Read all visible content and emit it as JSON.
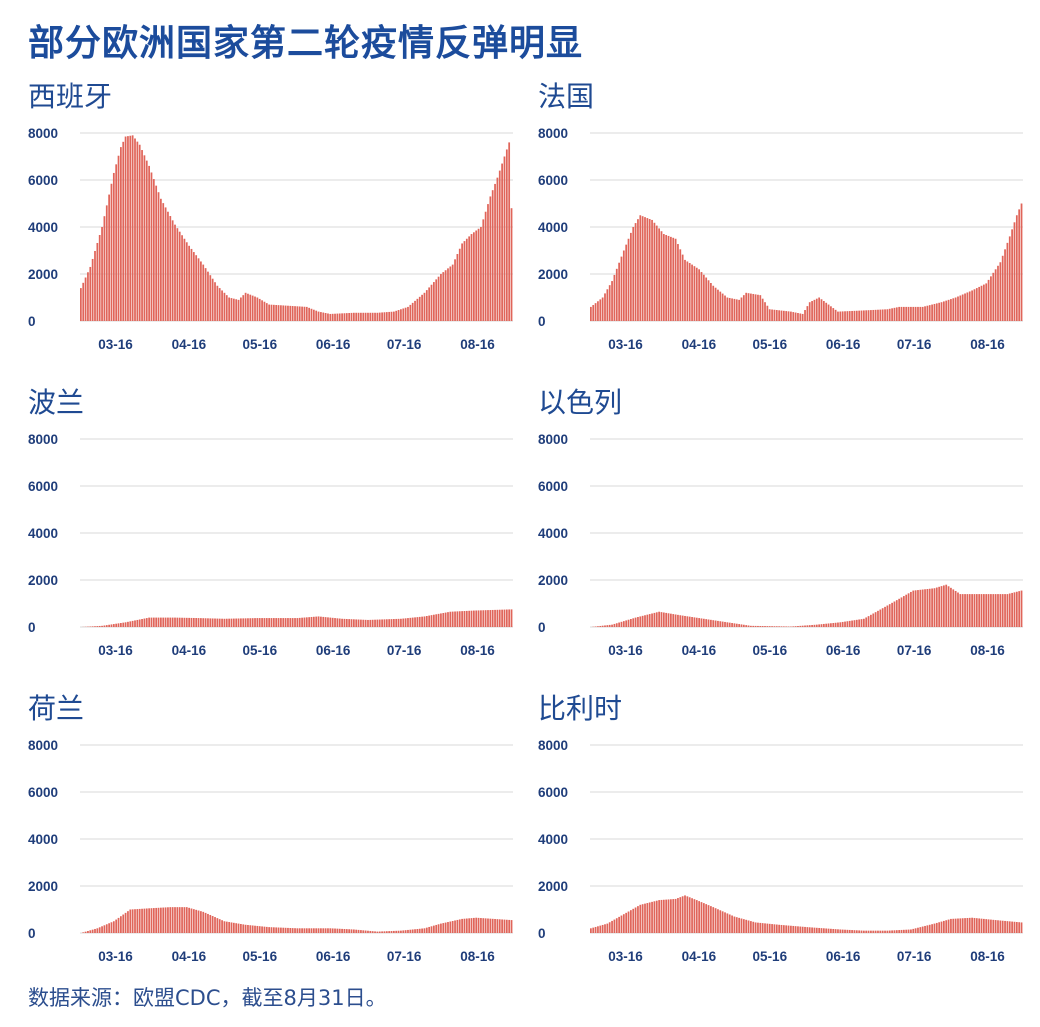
{
  "title": "部分欧洲国家第二轮疫情反弹明显",
  "source": "数据来源：欧盟CDC，截至8月31日。",
  "colors": {
    "bar": "#e0655a",
    "grid": "#d9d9d9",
    "title": "#1c4c9c",
    "tick": "#1f3d7a"
  },
  "chart_data": [
    {
      "type": "bar",
      "title": "西班牙",
      "x_ticks": [
        "03-16",
        "04-16",
        "05-16",
        "06-16",
        "07-16",
        "08-16"
      ],
      "y_ticks": [
        0,
        2000,
        4000,
        6000,
        8000
      ],
      "ylim": [
        0,
        8000
      ],
      "x_range": [
        "03-01",
        "08-31"
      ],
      "series": [
        {
          "points": [
            [
              "03-01",
              1400
            ],
            [
              "03-05",
              2300
            ],
            [
              "03-10",
              4000
            ],
            [
              "03-15",
              6300
            ],
            [
              "03-18",
              7400
            ],
            [
              "03-20",
              7850
            ],
            [
              "03-23",
              7900
            ],
            [
              "03-26",
              7500
            ],
            [
              "03-30",
              6600
            ],
            [
              "04-04",
              5200
            ],
            [
              "04-10",
              4100
            ],
            [
              "04-16",
              3200
            ],
            [
              "04-22",
              2400
            ],
            [
              "04-28",
              1500
            ],
            [
              "05-03",
              1000
            ],
            [
              "05-07",
              900
            ],
            [
              "05-10",
              1200
            ],
            [
              "05-15",
              1000
            ],
            [
              "05-20",
              700
            ],
            [
              "05-28",
              650
            ],
            [
              "06-05",
              600
            ],
            [
              "06-10",
              400
            ],
            [
              "06-15",
              300
            ],
            [
              "06-25",
              350
            ],
            [
              "07-05",
              350
            ],
            [
              "07-12",
              400
            ],
            [
              "07-18",
              600
            ],
            [
              "07-25",
              1200
            ],
            [
              "08-01",
              2000
            ],
            [
              "08-06",
              2400
            ],
            [
              "08-10",
              3300
            ],
            [
              "08-14",
              3700
            ],
            [
              "08-18",
              4000
            ],
            [
              "08-22",
              5300
            ],
            [
              "08-25",
              6100
            ],
            [
              "08-28",
              7000
            ],
            [
              "08-30",
              7600
            ],
            [
              "08-31",
              4800
            ]
          ]
        }
      ]
    },
    {
      "type": "bar",
      "title": "法国",
      "x_ticks": [
        "03-16",
        "04-16",
        "05-16",
        "06-16",
        "07-16",
        "08-16"
      ],
      "y_ticks": [
        0,
        2000,
        4000,
        6000,
        8000
      ],
      "ylim": [
        0,
        8000
      ],
      "x_range": [
        "03-01",
        "08-31"
      ],
      "series": [
        {
          "points": [
            [
              "03-01",
              600
            ],
            [
              "03-06",
              1000
            ],
            [
              "03-10",
              1700
            ],
            [
              "03-15",
              3000
            ],
            [
              "03-19",
              4000
            ],
            [
              "03-22",
              4500
            ],
            [
              "03-27",
              4300
            ],
            [
              "04-01",
              3700
            ],
            [
              "04-06",
              3500
            ],
            [
              "04-10",
              2600
            ],
            [
              "04-16",
              2200
            ],
            [
              "04-22",
              1500
            ],
            [
              "04-28",
              1000
            ],
            [
              "05-03",
              900
            ],
            [
              "05-06",
              1200
            ],
            [
              "05-12",
              1100
            ],
            [
              "05-16",
              500
            ],
            [
              "05-25",
              400
            ],
            [
              "05-30",
              300
            ],
            [
              "06-02",
              800
            ],
            [
              "06-06",
              1000
            ],
            [
              "06-10",
              700
            ],
            [
              "06-14",
              400
            ],
            [
              "06-25",
              450
            ],
            [
              "07-05",
              500
            ],
            [
              "07-10",
              600
            ],
            [
              "07-20",
              600
            ],
            [
              "07-28",
              800
            ],
            [
              "08-03",
              1000
            ],
            [
              "08-10",
              1300
            ],
            [
              "08-16",
              1600
            ],
            [
              "08-22",
              2500
            ],
            [
              "08-26",
              3600
            ],
            [
              "08-29",
              4500
            ],
            [
              "08-31",
              5000
            ]
          ]
        }
      ]
    },
    {
      "type": "bar",
      "title": "波兰",
      "x_ticks": [
        "03-16",
        "04-16",
        "05-16",
        "06-16",
        "07-16",
        "08-16"
      ],
      "y_ticks": [
        0,
        2000,
        4000,
        6000,
        8000
      ],
      "ylim": [
        0,
        8000
      ],
      "x_range": [
        "03-01",
        "08-31"
      ],
      "series": [
        {
          "points": [
            [
              "03-01",
              0
            ],
            [
              "03-10",
              50
            ],
            [
              "03-20",
              200
            ],
            [
              "03-30",
              400
            ],
            [
              "04-10",
              400
            ],
            [
              "04-20",
              380
            ],
            [
              "05-01",
              350
            ],
            [
              "05-15",
              380
            ],
            [
              "06-01",
              380
            ],
            [
              "06-10",
              450
            ],
            [
              "06-20",
              350
            ],
            [
              "07-01",
              300
            ],
            [
              "07-15",
              350
            ],
            [
              "07-25",
              450
            ],
            [
              "08-05",
              650
            ],
            [
              "08-15",
              700
            ],
            [
              "08-31",
              750
            ]
          ]
        }
      ]
    },
    {
      "type": "bar",
      "title": "以色列",
      "x_ticks": [
        "03-16",
        "04-16",
        "05-16",
        "06-16",
        "07-16",
        "08-16"
      ],
      "y_ticks": [
        0,
        2000,
        4000,
        6000,
        8000
      ],
      "ylim": [
        0,
        8000
      ],
      "x_range": [
        "03-01",
        "08-31"
      ],
      "series": [
        {
          "points": [
            [
              "03-01",
              0
            ],
            [
              "03-10",
              100
            ],
            [
              "03-20",
              400
            ],
            [
              "03-30",
              650
            ],
            [
              "04-08",
              500
            ],
            [
              "04-18",
              350
            ],
            [
              "04-28",
              200
            ],
            [
              "05-08",
              50
            ],
            [
              "05-25",
              20
            ],
            [
              "06-05",
              100
            ],
            [
              "06-15",
              200
            ],
            [
              "06-25",
              350
            ],
            [
              "07-03",
              800
            ],
            [
              "07-10",
              1200
            ],
            [
              "07-16",
              1550
            ],
            [
              "07-25",
              1650
            ],
            [
              "07-30",
              1800
            ],
            [
              "08-05",
              1400
            ],
            [
              "08-16",
              1400
            ],
            [
              "08-25",
              1400
            ],
            [
              "08-31",
              1550
            ]
          ]
        }
      ]
    },
    {
      "type": "bar",
      "title": "荷兰",
      "x_ticks": [
        "03-16",
        "04-16",
        "05-16",
        "06-16",
        "07-16",
        "08-16"
      ],
      "y_ticks": [
        0,
        2000,
        4000,
        6000,
        8000
      ],
      "ylim": [
        0,
        8000
      ],
      "x_range": [
        "03-01",
        "08-31"
      ],
      "series": [
        {
          "points": [
            [
              "03-01",
              0
            ],
            [
              "03-08",
              200
            ],
            [
              "03-15",
              500
            ],
            [
              "03-22",
              1000
            ],
            [
              "03-30",
              1050
            ],
            [
              "04-08",
              1100
            ],
            [
              "04-15",
              1100
            ],
            [
              "04-22",
              900
            ],
            [
              "05-01",
              500
            ],
            [
              "05-10",
              350
            ],
            [
              "05-20",
              250
            ],
            [
              "06-01",
              200
            ],
            [
              "06-15",
              200
            ],
            [
              "06-25",
              150
            ],
            [
              "07-05",
              60
            ],
            [
              "07-15",
              100
            ],
            [
              "07-25",
              200
            ],
            [
              "08-01",
              400
            ],
            [
              "08-10",
              600
            ],
            [
              "08-16",
              650
            ],
            [
              "08-31",
              550
            ]
          ]
        }
      ]
    },
    {
      "type": "bar",
      "title": "比利时",
      "x_ticks": [
        "03-16",
        "04-16",
        "05-16",
        "06-16",
        "07-16",
        "08-16"
      ],
      "y_ticks": [
        0,
        2000,
        4000,
        6000,
        8000
      ],
      "ylim": [
        0,
        8000
      ],
      "x_range": [
        "03-01",
        "08-31"
      ],
      "series": [
        {
          "points": [
            [
              "03-01",
              200
            ],
            [
              "03-08",
              400
            ],
            [
              "03-15",
              800
            ],
            [
              "03-22",
              1200
            ],
            [
              "03-30",
              1400
            ],
            [
              "04-06",
              1450
            ],
            [
              "04-10",
              1600
            ],
            [
              "04-15",
              1400
            ],
            [
              "04-22",
              1100
            ],
            [
              "05-01",
              700
            ],
            [
              "05-10",
              450
            ],
            [
              "05-20",
              350
            ],
            [
              "06-01",
              250
            ],
            [
              "06-15",
              150
            ],
            [
              "06-25",
              100
            ],
            [
              "07-05",
              100
            ],
            [
              "07-15",
              150
            ],
            [
              "07-25",
              400
            ],
            [
              "08-01",
              600
            ],
            [
              "08-10",
              650
            ],
            [
              "08-20",
              550
            ],
            [
              "08-31",
              450
            ]
          ]
        }
      ]
    }
  ]
}
